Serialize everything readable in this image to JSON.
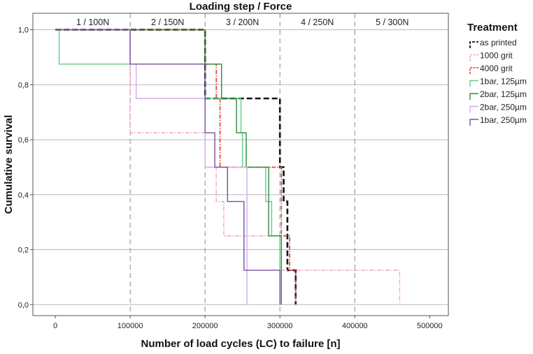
{
  "chart_data": {
    "type": "line",
    "subtype": "kaplan-meier step survival",
    "top_title": "Loading step / Force",
    "xlabel": "Number of load cycles (LC) to failure [n]",
    "ylabel": "Cumulative survival",
    "xlim": [
      -30000,
      525000
    ],
    "ylim": [
      -0.04,
      1.06
    ],
    "x_ticks": [
      0,
      100000,
      200000,
      300000,
      400000,
      500000
    ],
    "y_ticks": [
      0.0,
      0.2,
      0.4,
      0.6,
      0.8,
      1.0
    ],
    "y_tick_labels": [
      "0,0",
      "0,2",
      "0,4",
      "0,6",
      "0,8",
      "1,0"
    ],
    "grid": "horizontal",
    "loading_steps": [
      {
        "label": "1 / 100N",
        "x_start": 0,
        "x_end": 100000
      },
      {
        "label": "2 / 150N",
        "x_start": 100000,
        "x_end": 200000
      },
      {
        "label": "3 / 200N",
        "x_start": 200000,
        "x_end": 300000
      },
      {
        "label": "4 / 250N",
        "x_start": 300000,
        "x_end": 400000
      },
      {
        "label": "5 / 300N",
        "x_start": 400000,
        "x_end": 500000
      }
    ],
    "step_boundaries": [
      100000,
      200000,
      300000,
      400000
    ],
    "legend_title": "Treatment",
    "legend_position": "right",
    "series": [
      {
        "name": "as printed",
        "color": "#111111",
        "dash": "8,4",
        "width": 2.6,
        "points": [
          [
            0,
            1.0
          ],
          [
            200000,
            1.0
          ],
          [
            200000,
            0.75
          ],
          [
            300000,
            0.75
          ],
          [
            300000,
            0.5
          ],
          [
            305000,
            0.5
          ],
          [
            305000,
            0.375
          ],
          [
            310000,
            0.375
          ],
          [
            310000,
            0.125
          ],
          [
            321000,
            0.125
          ],
          [
            321000,
            0.0
          ]
        ]
      },
      {
        "name": "1000 grit",
        "color": "#f7a8c8",
        "dash": "6,2,1.5,2",
        "width": 1.6,
        "points": [
          [
            0,
            1.0
          ],
          [
            100000,
            1.0
          ],
          [
            100000,
            0.625
          ],
          [
            200000,
            0.625
          ],
          [
            200000,
            0.5
          ],
          [
            215000,
            0.5
          ],
          [
            215000,
            0.375
          ],
          [
            225000,
            0.375
          ],
          [
            225000,
            0.25
          ],
          [
            300000,
            0.25
          ],
          [
            300000,
            0.125
          ],
          [
            460000,
            0.125
          ],
          [
            460000,
            0.0
          ]
        ]
      },
      {
        "name": "4000 grit",
        "color": "#e53935",
        "dash": "6,2,1.5,2",
        "width": 1.6,
        "points": [
          [
            0,
            1.0
          ],
          [
            200000,
            1.0
          ],
          [
            200000,
            0.875
          ],
          [
            215000,
            0.875
          ],
          [
            215000,
            0.75
          ],
          [
            220000,
            0.75
          ],
          [
            220000,
            0.5
          ],
          [
            302000,
            0.5
          ],
          [
            302000,
            0.25
          ],
          [
            313000,
            0.25
          ],
          [
            313000,
            0.125
          ],
          [
            321000,
            0.125
          ],
          [
            321000,
            0.0
          ]
        ]
      },
      {
        "name": "1bar, 125µm",
        "color": "#66c98a",
        "dash": "",
        "width": 1.4,
        "points": [
          [
            0,
            1.0
          ],
          [
            5000,
            1.0
          ],
          [
            5000,
            0.875
          ],
          [
            200000,
            0.875
          ],
          [
            200000,
            0.75
          ],
          [
            248000,
            0.75
          ],
          [
            248000,
            0.625
          ],
          [
            250000,
            0.625
          ],
          [
            250000,
            0.5
          ],
          [
            281000,
            0.5
          ],
          [
            281000,
            0.375
          ],
          [
            289000,
            0.375
          ],
          [
            289000,
            0.25
          ],
          [
            300000,
            0.25
          ],
          [
            300000,
            0.0
          ]
        ]
      },
      {
        "name": "2bar, 125µm",
        "color": "#2e8b3a",
        "dash": "",
        "width": 1.4,
        "points": [
          [
            0,
            1.0
          ],
          [
            200000,
            1.0
          ],
          [
            200000,
            0.875
          ],
          [
            222000,
            0.875
          ],
          [
            222000,
            0.75
          ],
          [
            242000,
            0.75
          ],
          [
            242000,
            0.625
          ],
          [
            255000,
            0.625
          ],
          [
            255000,
            0.5
          ],
          [
            285000,
            0.5
          ],
          [
            285000,
            0.25
          ],
          [
            302000,
            0.25
          ],
          [
            302000,
            0.0
          ]
        ]
      },
      {
        "name": "2bar, 250µm",
        "color": "#d3aee6",
        "dash": "",
        "width": 1.4,
        "points": [
          [
            0,
            1.0
          ],
          [
            100000,
            1.0
          ],
          [
            100000,
            0.875
          ],
          [
            108000,
            0.875
          ],
          [
            108000,
            0.75
          ],
          [
            200000,
            0.75
          ],
          [
            200000,
            0.5
          ],
          [
            256000,
            0.5
          ],
          [
            256000,
            0.0
          ]
        ]
      },
      {
        "name": "1bar, 250µm",
        "color": "#7b4f9e",
        "dash": "",
        "width": 1.4,
        "points": [
          [
            0,
            1.0
          ],
          [
            100000,
            1.0
          ],
          [
            100000,
            0.875
          ],
          [
            200000,
            0.875
          ],
          [
            200000,
            0.625
          ],
          [
            213000,
            0.625
          ],
          [
            213000,
            0.5
          ],
          [
            230000,
            0.5
          ],
          [
            230000,
            0.375
          ],
          [
            252000,
            0.375
          ],
          [
            252000,
            0.125
          ],
          [
            300000,
            0.125
          ],
          [
            300000,
            0.0
          ]
        ]
      }
    ]
  }
}
